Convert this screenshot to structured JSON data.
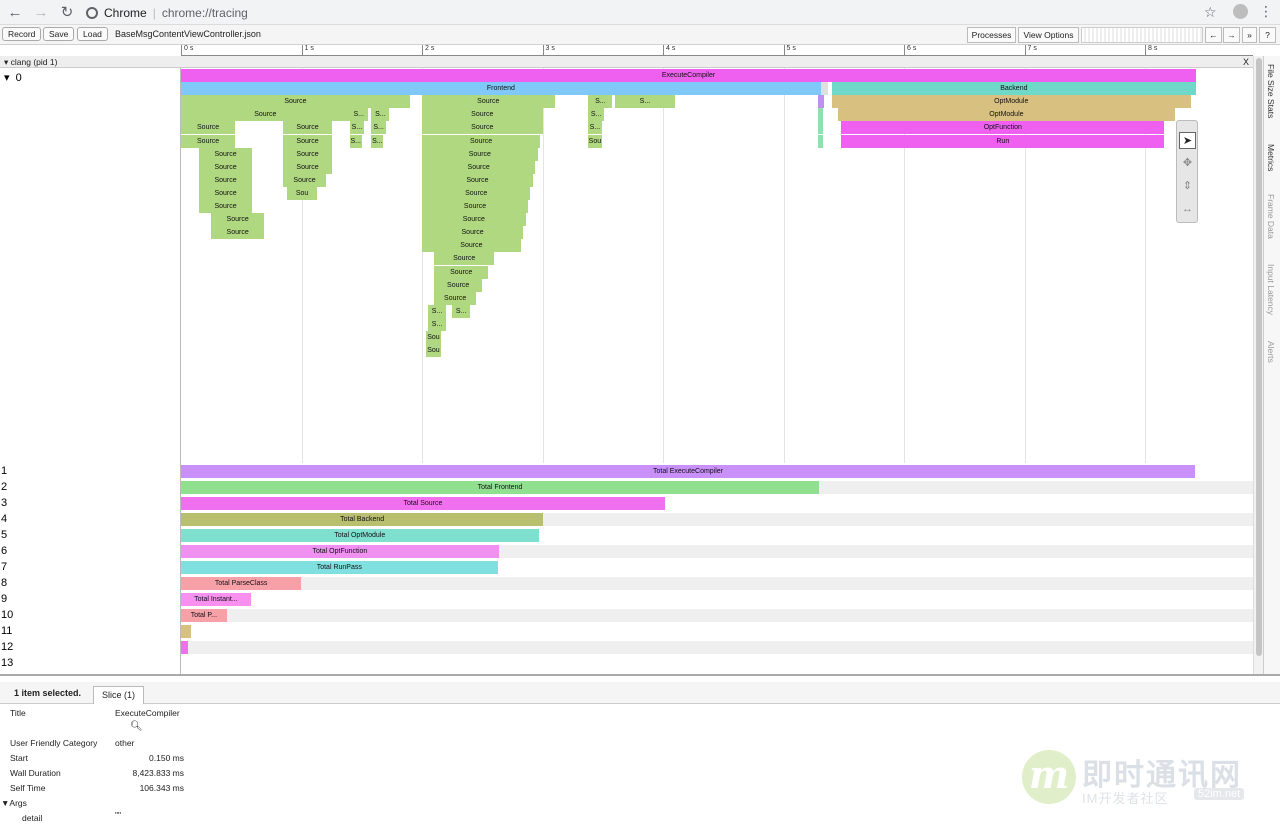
{
  "browser": {
    "site_label": "Chrome",
    "url": "chrome://tracing"
  },
  "toolbar": {
    "record_label": "Record",
    "save_label": "Save",
    "load_label": "Load",
    "file_name": "BaseMsgContentViewController.json",
    "processes_label": "Processes",
    "view_options_label": "View Options",
    "nav_left": "←",
    "nav_right": "→",
    "more": "»",
    "help": "?"
  },
  "timeline": {
    "ticks": [
      "0 s",
      "1 s",
      "2 s",
      "3 s",
      "4 s",
      "5 s",
      "6 s",
      "7 s",
      "8 s"
    ],
    "process_label": "clang (pid 1)",
    "close_label": "X",
    "thread_label": "0",
    "collapse_glyph": "▾"
  },
  "flame": {
    "total_ms": 8423.983,
    "slices": [
      {
        "name": "ExecuteCompiler",
        "start": 0.0,
        "dur": 8423.8,
        "depth": 0,
        "color": "#f060f0"
      },
      {
        "name": "Frontend",
        "start": 0.0,
        "dur": 5310,
        "depth": 1,
        "color": "#80c8f8"
      },
      {
        "name": "",
        "start": 5310,
        "dur": 60,
        "depth": 1,
        "color": "#e0e0e0"
      },
      {
        "name": "Backend",
        "start": 5400,
        "dur": 3024,
        "depth": 1,
        "color": "#70d8c8"
      },
      {
        "name": "Source",
        "start": 0.0,
        "dur": 1900,
        "depth": 2,
        "color": "#b0d880"
      },
      {
        "name": "Source",
        "start": 2000,
        "dur": 1100,
        "depth": 2,
        "color": "#b0d880"
      },
      {
        "name": "S...",
        "start": 3380,
        "dur": 200,
        "depth": 2,
        "color": "#b0d880"
      },
      {
        "name": "S...",
        "start": 3600,
        "dur": 500,
        "depth": 2,
        "color": "#b0d880"
      },
      {
        "name": "",
        "start": 5285,
        "dur": 55,
        "depth": 2,
        "color": "#c090f0"
      },
      {
        "name": "OptModule",
        "start": 5400,
        "dur": 2980,
        "depth": 2,
        "color": "#d8c080"
      },
      {
        "name": "Source",
        "start": 0.0,
        "dur": 1400,
        "depth": 3,
        "color": "#b0d880"
      },
      {
        "name": "S...",
        "start": 1400,
        "dur": 150,
        "depth": 3,
        "color": "#b0d880"
      },
      {
        "name": "S...",
        "start": 1580,
        "dur": 150,
        "depth": 3,
        "color": "#b0d880"
      },
      {
        "name": "Source",
        "start": 2000,
        "dur": 1000,
        "depth": 3,
        "color": "#b0d880"
      },
      {
        "name": "S...",
        "start": 3380,
        "dur": 130,
        "depth": 3,
        "color": "#b0d880"
      },
      {
        "name": "",
        "start": 5290,
        "dur": 40,
        "depth": 3,
        "color": "#90e0b0"
      },
      {
        "name": "OptModule",
        "start": 5450,
        "dur": 2800,
        "depth": 3,
        "color": "#d8c080"
      },
      {
        "name": "Source",
        "start": 0.0,
        "dur": 450,
        "depth": 4,
        "color": "#b0d880"
      },
      {
        "name": "Source",
        "start": 850,
        "dur": 400,
        "depth": 4,
        "color": "#b0d880"
      },
      {
        "name": "S...",
        "start": 1400,
        "dur": 120,
        "depth": 4,
        "color": "#b0d880"
      },
      {
        "name": "S...",
        "start": 1580,
        "dur": 120,
        "depth": 4,
        "color": "#b0d880"
      },
      {
        "name": "Source",
        "start": 2000,
        "dur": 1000,
        "depth": 4,
        "color": "#b0d880"
      },
      {
        "name": "S...",
        "start": 3380,
        "dur": 110,
        "depth": 4,
        "color": "#b0d880"
      },
      {
        "name": "",
        "start": 5290,
        "dur": 40,
        "depth": 4,
        "color": "#90e0b0"
      },
      {
        "name": "OptFunction",
        "start": 5480,
        "dur": 2680,
        "depth": 4,
        "color": "#f060f0"
      },
      {
        "name": "Source",
        "start": 0.0,
        "dur": 450,
        "depth": 5,
        "color": "#b0d880"
      },
      {
        "name": "Source",
        "start": 850,
        "dur": 400,
        "depth": 5,
        "color": "#b0d880"
      },
      {
        "name": "S...",
        "start": 1400,
        "dur": 100,
        "depth": 5,
        "color": "#b0d880"
      },
      {
        "name": "S...",
        "start": 1580,
        "dur": 100,
        "depth": 5,
        "color": "#b0d880"
      },
      {
        "name": "Source",
        "start": 2000,
        "dur": 980,
        "depth": 5,
        "color": "#b0d880"
      },
      {
        "name": "Sou",
        "start": 3380,
        "dur": 110,
        "depth": 5,
        "color": "#b0d880"
      },
      {
        "name": "",
        "start": 5290,
        "dur": 40,
        "depth": 5,
        "color": "#90e0b0"
      },
      {
        "name": "Run",
        "start": 5480,
        "dur": 2680,
        "depth": 5,
        "color": "#f060f0"
      },
      {
        "name": "Source",
        "start": 150,
        "dur": 440,
        "depth": 6,
        "color": "#b0d880"
      },
      {
        "name": "Source",
        "start": 850,
        "dur": 400,
        "depth": 6,
        "color": "#b0d880"
      },
      {
        "name": "Source",
        "start": 2000,
        "dur": 960,
        "depth": 6,
        "color": "#b0d880"
      },
      {
        "name": "Source",
        "start": 150,
        "dur": 440,
        "depth": 7,
        "color": "#b0d880"
      },
      {
        "name": "Source",
        "start": 850,
        "dur": 400,
        "depth": 7,
        "color": "#b0d880"
      },
      {
        "name": "Source",
        "start": 2000,
        "dur": 940,
        "depth": 7,
        "color": "#b0d880"
      },
      {
        "name": "Source",
        "start": 150,
        "dur": 440,
        "depth": 8,
        "color": "#b0d880"
      },
      {
        "name": "Source",
        "start": 850,
        "dur": 350,
        "depth": 8,
        "color": "#b0d880"
      },
      {
        "name": "Source",
        "start": 2000,
        "dur": 920,
        "depth": 8,
        "color": "#b0d880"
      },
      {
        "name": "Source",
        "start": 150,
        "dur": 440,
        "depth": 9,
        "color": "#b0d880"
      },
      {
        "name": "Sou",
        "start": 880,
        "dur": 250,
        "depth": 9,
        "color": "#b0d880"
      },
      {
        "name": "Source",
        "start": 2000,
        "dur": 900,
        "depth": 9,
        "color": "#b0d880"
      },
      {
        "name": "Source",
        "start": 150,
        "dur": 440,
        "depth": 10,
        "color": "#b0d880"
      },
      {
        "name": "Source",
        "start": 2000,
        "dur": 880,
        "depth": 10,
        "color": "#b0d880"
      },
      {
        "name": "Source",
        "start": 250,
        "dur": 440,
        "depth": 11,
        "color": "#b0d880"
      },
      {
        "name": "Source",
        "start": 2000,
        "dur": 860,
        "depth": 11,
        "color": "#b0d880"
      },
      {
        "name": "Source",
        "start": 250,
        "dur": 440,
        "depth": 12,
        "color": "#b0d880"
      },
      {
        "name": "Source",
        "start": 2000,
        "dur": 840,
        "depth": 12,
        "color": "#b0d880"
      },
      {
        "name": "Source",
        "start": 2000,
        "dur": 820,
        "depth": 13,
        "color": "#b0d880"
      },
      {
        "name": "Source",
        "start": 2100,
        "dur": 500,
        "depth": 14,
        "color": "#b0d880"
      },
      {
        "name": "Source",
        "start": 2100,
        "dur": 450,
        "depth": 15,
        "color": "#b0d880"
      },
      {
        "name": "Source",
        "start": 2100,
        "dur": 400,
        "depth": 16,
        "color": "#b0d880"
      },
      {
        "name": "Source",
        "start": 2100,
        "dur": 350,
        "depth": 17,
        "color": "#b0d880"
      },
      {
        "name": "S...",
        "start": 2050,
        "dur": 150,
        "depth": 18,
        "color": "#b0d880"
      },
      {
        "name": "S...",
        "start": 2250,
        "dur": 150,
        "depth": 18,
        "color": "#b0d880"
      },
      {
        "name": "S...",
        "start": 2050,
        "dur": 150,
        "depth": 19,
        "color": "#b0d880"
      },
      {
        "name": "Sou",
        "start": 2030,
        "dur": 130,
        "depth": 20,
        "color": "#b0d880"
      },
      {
        "name": "Sou",
        "start": 2030,
        "dur": 130,
        "depth": 21,
        "color": "#b0d880"
      }
    ]
  },
  "counters": [
    {
      "label": "1",
      "name": "Total ExecuteCompiler",
      "value_ms": 8423.8,
      "color": "#c890f8"
    },
    {
      "label": "2",
      "name": "Total Frontend",
      "value_ms": 5300,
      "color": "#90e090"
    },
    {
      "label": "3",
      "name": "Total Source",
      "value_ms": 4020,
      "color": "#f070f0"
    },
    {
      "label": "4",
      "name": "Total Backend",
      "value_ms": 3010,
      "color": "#b8c070"
    },
    {
      "label": "5",
      "name": "Total OptModule",
      "value_ms": 2970,
      "color": "#80e0d0"
    },
    {
      "label": "6",
      "name": "Total OptFunction",
      "value_ms": 2640,
      "color": "#f090f0"
    },
    {
      "label": "7",
      "name": "Total RunPass",
      "value_ms": 2630,
      "color": "#80e0e0"
    },
    {
      "label": "8",
      "name": "Total ParseClass",
      "value_ms": 1000,
      "color": "#f8a0a8"
    },
    {
      "label": "9",
      "name": "Total Instant...",
      "value_ms": 580,
      "color": "#f890f0"
    },
    {
      "label": "10",
      "name": "Total P...",
      "value_ms": 380,
      "color": "#f8a0a8"
    },
    {
      "label": "11",
      "name": "",
      "value_ms": 80,
      "color": "#d8c080"
    },
    {
      "label": "12",
      "name": "",
      "value_ms": 60,
      "color": "#f070f0"
    },
    {
      "label": "13",
      "name": "",
      "value_ms": 0,
      "color": "#cccccc"
    }
  ],
  "side_tabs": [
    "File Size Stats",
    "Metrics",
    "Frame Data",
    "Input Latency",
    "Alerts"
  ],
  "selection": {
    "count_label": "1 item selected.",
    "tab_label": "Slice (1)",
    "rows": [
      {
        "key": "Title",
        "value": "ExecuteCompiler"
      },
      {
        "key": "User Friendly Category",
        "value": "other"
      },
      {
        "key": "Start",
        "value": "0.150 ms"
      },
      {
        "key": "Wall Duration",
        "value": "8,423.833 ms"
      },
      {
        "key": "Self Time",
        "value": "106.343 ms"
      }
    ],
    "args_label": "Args",
    "args": [
      {
        "key": "detail",
        "value": "\"\""
      }
    ]
  },
  "watermark": {
    "logo_letter": "m",
    "title": "即时通讯网",
    "subtitle": "IM开发者社区",
    "domain": "52im.net"
  }
}
